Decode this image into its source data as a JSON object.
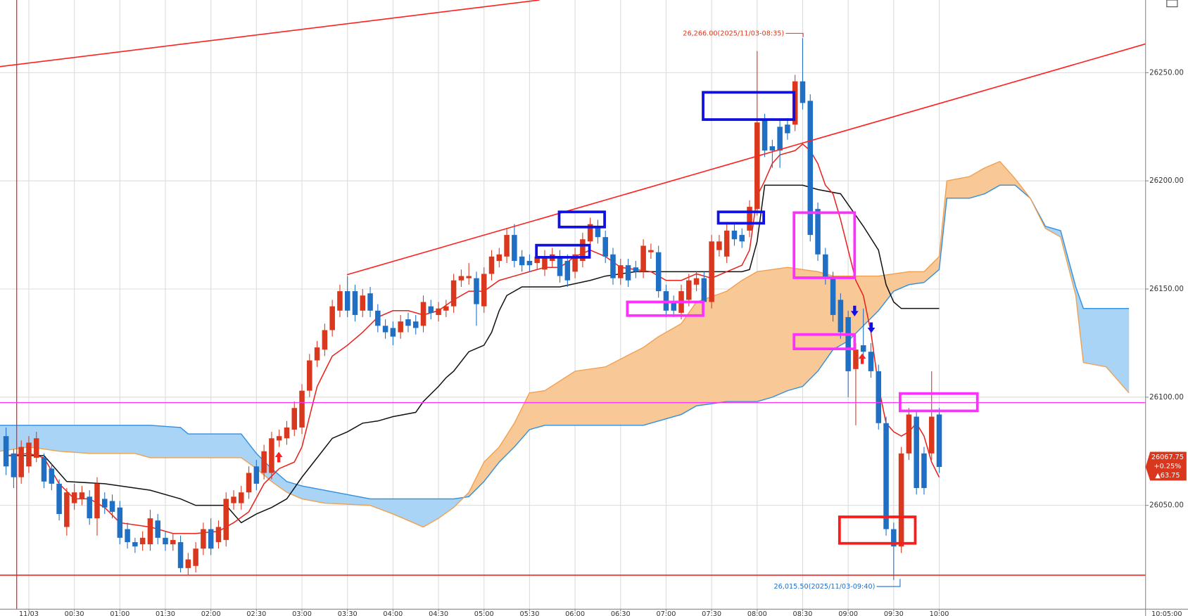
{
  "chart_data": {
    "type": "candlestick",
    "categories": [
      null,
      null,
      null,
      "11/03",
      null,
      null,
      null,
      null,
      null,
      "00:30",
      null,
      null,
      null,
      null,
      null,
      "01:00",
      null,
      null,
      null,
      null,
      null,
      "01:30",
      null,
      null,
      null,
      null,
      null,
      "02:00",
      null,
      null,
      null,
      null,
      null,
      "02:30",
      null,
      null,
      null,
      null,
      null,
      "03:00",
      null,
      null,
      null,
      null,
      null,
      "03:30",
      null,
      null,
      null,
      null,
      null,
      "04:00",
      null,
      null,
      null,
      null,
      null,
      "04:30",
      null,
      null,
      null,
      null,
      null,
      "05:00",
      null,
      null,
      null,
      null,
      null,
      "05:30",
      null,
      null,
      null,
      null,
      null,
      "06:00",
      null,
      null,
      null,
      null,
      null,
      "06:30",
      null,
      null,
      null,
      null,
      null,
      "07:00",
      null,
      null,
      null,
      null,
      null,
      "07:30",
      null,
      null,
      null,
      null,
      null,
      "08:00",
      null,
      null,
      null,
      null,
      null,
      "08:30",
      null,
      null,
      null,
      null,
      null,
      "09:00",
      null,
      null,
      null,
      null,
      null,
      "09:30",
      null,
      null,
      null,
      null,
      null,
      "10:00"
    ],
    "open": [
      26082,
      26074,
      26063,
      26068,
      26072,
      26072,
      26067,
      26060,
      26040,
      26051,
      26053,
      26054,
      26044,
      26053,
      26052,
      26049,
      26039,
      26033,
      26032,
      26032,
      26043,
      26035,
      26032,
      26033,
      26021,
      26022,
      26030,
      26039,
      26033,
      26034,
      26051,
      26051,
      26056,
      26068,
      26065,
      26065,
      26080,
      26081,
      26085,
      26086,
      26103,
      26117,
      26122,
      26131,
      26140,
      26149,
      26149,
      26140,
      26148,
      26140,
      26133,
      26132,
      26130,
      26136,
      26135,
      26133,
      26142,
      26138,
      26140,
      26142,
      26154,
      26155,
      26155,
      26142,
      26157,
      26163,
      26165,
      26175,
      26165,
      26163,
      26162,
      26159,
      26163,
      26165,
      26163,
      26158,
      26163,
      26172,
      26179,
      26174,
      26166,
      26155,
      26161,
      26160,
      26158,
      26167,
      26167,
      26149,
      26144,
      26139,
      26145,
      26152,
      26155,
      26144,
      26168,
      26165,
      26177,
      26175,
      26177,
      26187,
      26228,
      26216,
      26225,
      26226,
      26226,
      26246,
      26237,
      26187,
      26166,
      26155,
      26145,
      26137,
      26113,
      26124,
      26121,
      26112,
      26088,
      26039,
      26031,
      26074,
      26091,
      26074,
      26074,
      26092
    ],
    "high": [
      26086,
      26076,
      26080,
      26082,
      26084,
      26074,
      26069,
      26062,
      26058,
      26060,
      26059,
      26057,
      26063,
      26056,
      26055,
      26052,
      26042,
      26035,
      26038,
      26048,
      26046,
      26038,
      26037,
      26036,
      26028,
      26033,
      26042,
      26044,
      26043,
      26056,
      26057,
      26059,
      26068,
      26071,
      26078,
      26084,
      26085,
      26089,
      26098,
      26106,
      26120,
      26126,
      26134,
      26145,
      26152,
      26156,
      26152,
      26150,
      26151,
      26143,
      26136,
      26135,
      26138,
      26139,
      26138,
      26147,
      26145,
      26144,
      26145,
      26157,
      26159,
      26162,
      26158,
      26160,
      26168,
      26169,
      26178,
      26180,
      26168,
      26166,
      26168,
      26168,
      26169,
      26168,
      26166,
      26169,
      26176,
      26183,
      26182,
      26177,
      26169,
      26164,
      26164,
      26163,
      26173,
      26171,
      26170,
      26152,
      26147,
      26152,
      26157,
      26158,
      26158,
      26175,
      26175,
      26180,
      26180,
      26178,
      26191,
      26260,
      26231,
      26219,
      26228,
      26229,
      26249,
      26266,
      26240,
      26190,
      26169,
      26158,
      26148,
      26140,
      26125,
      26141,
      26125,
      26115,
      26091,
      26042,
      26077,
      26095,
      26094,
      26077,
      26112,
      26095
    ],
    "low": [
      26064,
      26058,
      26060,
      26065,
      26070,
      26058,
      26057,
      26043,
      26036,
      26048,
      26050,
      26041,
      26036,
      26046,
      26044,
      26032,
      26030,
      26028,
      26029,
      26029,
      26032,
      26029,
      26029,
      26019,
      26018,
      26019,
      26027,
      26027,
      26030,
      26031,
      26048,
      26048,
      26053,
      26057,
      26062,
      26062,
      26077,
      26078,
      26082,
      26083,
      26100,
      26114,
      26119,
      26128,
      26137,
      26137,
      26135,
      26137,
      26137,
      26130,
      26127,
      26124,
      26127,
      26130,
      26129,
      26130,
      26136,
      26135,
      26137,
      26139,
      26151,
      26152,
      26133,
      26139,
      26154,
      26160,
      26162,
      26160,
      26158,
      26158,
      26159,
      26156,
      26160,
      26153,
      26151,
      26155,
      26160,
      26169,
      26171,
      26162,
      26152,
      26152,
      26151,
      26155,
      26155,
      26164,
      26146,
      26137,
      26137,
      26136,
      26142,
      26149,
      26141,
      26141,
      26165,
      26162,
      26170,
      26169,
      26174,
      26184,
      26211,
      26206,
      26206,
      26219,
      26223,
      26233,
      26172,
      26163,
      26152,
      26135,
      26127,
      26100,
      26087,
      26118,
      26109,
      26085,
      26036,
      26015.5,
      26028,
      26071,
      26055,
      26055,
      26071,
      26065
    ],
    "close": [
      26068,
      26063,
      26077,
      26079,
      26081,
      26061,
      26060,
      26046,
      26056,
      26056,
      26056,
      26044,
      26060,
      26049,
      26047,
      26035,
      26033,
      26031,
      26035,
      26044,
      26035,
      26032,
      26034,
      26021,
      26025,
      26030,
      26039,
      26030,
      26040,
      26053,
      26054,
      26056,
      26065,
      26060,
      26075,
      26081,
      26082,
      26086,
      26095,
      26103,
      26117,
      26123,
      26131,
      26142,
      26149,
      26140,
      26138,
      26147,
      26140,
      26133,
      26130,
      26128,
      26135,
      26133,
      26132,
      26144,
      26139,
      26141,
      26142,
      26154,
      26156,
      26156,
      26143,
      26157,
      26165,
      26166,
      26175,
      26163,
      26161,
      26161,
      26165,
      26165,
      26166,
      26156,
      26154,
      26166,
      26173,
      26180,
      26174,
      26165,
      26155,
      26161,
      26154,
      26158,
      26170,
      26168,
      26149,
      26140,
      26140,
      26149,
      26154,
      26155,
      26144,
      26172,
      26172,
      26177,
      26173,
      26172,
      26188,
      26227,
      26214,
      26214,
      26214,
      26222,
      26246,
      26236,
      26175,
      26166,
      26155,
      26138,
      26130,
      26112,
      26122,
      26121,
      26112,
      26088,
      26039,
      26031,
      26074,
      26092,
      26058,
      26058,
      26091,
      26067.75
    ],
    "up_color": "#d9381e",
    "down_color": "#1f6fc5",
    "conversion_line": {
      "color": "#e8211a",
      "x": [
        0,
        3,
        5,
        7,
        9,
        11,
        13,
        15,
        19,
        22,
        25,
        28,
        30,
        32,
        34,
        36,
        38,
        39,
        40,
        41,
        42,
        43,
        45,
        47,
        49,
        51,
        53,
        55,
        57,
        59,
        61,
        63,
        65,
        67,
        69,
        71,
        73,
        75,
        77,
        79,
        81,
        83,
        85,
        87,
        89,
        91,
        93,
        95,
        97,
        98,
        99,
        100,
        101,
        102,
        104,
        105,
        106,
        107,
        108,
        109,
        110,
        111,
        112,
        113,
        114,
        115,
        116,
        117,
        118,
        119,
        120,
        121,
        122,
        123
      ],
      "values": [
        26073,
        26074,
        26072,
        26060,
        26053,
        26053,
        26049,
        26042,
        26040,
        26037,
        26037,
        26038,
        26042,
        26047,
        26060,
        26067,
        26070,
        26077,
        26091,
        26105,
        26112,
        26119,
        26124,
        26130,
        26137,
        26140,
        26140,
        26138,
        26140,
        26145,
        26149,
        26149,
        26154,
        26156,
        26158,
        26160,
        26160,
        26165,
        26168,
        26165,
        26160,
        26159,
        26158,
        26154,
        26154,
        26157,
        26155,
        26158,
        26161,
        26168,
        26193,
        26200,
        26208,
        26212,
        26214,
        26217,
        26214,
        26208,
        26198,
        26194,
        26182,
        26168,
        26154,
        26147,
        26130,
        26105,
        26088,
        26084,
        26082,
        26084,
        26088,
        26082,
        26070,
        26063
      ]
    },
    "base_line": {
      "color": "#111111",
      "x": [
        0,
        5,
        8,
        13,
        19,
        23,
        25,
        29,
        31,
        33,
        35,
        37,
        39,
        41,
        43,
        45,
        47,
        49,
        51,
        54,
        55,
        57,
        58,
        59,
        61,
        63,
        64,
        65,
        66,
        68,
        73,
        77,
        79,
        81,
        83,
        97,
        98,
        99,
        100,
        105,
        107,
        110,
        113,
        115,
        116,
        117,
        118,
        123
      ],
      "values": [
        26073,
        26073,
        26061,
        26060,
        26057,
        26053,
        26050,
        26050,
        26042,
        26046,
        26049,
        26053,
        26063,
        26072,
        26081,
        26084,
        26088,
        26089,
        26091,
        26093,
        26098,
        26105,
        26109,
        26112,
        26121,
        26124,
        26130,
        26140,
        26147,
        26151,
        26151,
        26154,
        26156,
        26157,
        26158,
        26158,
        26159,
        26172,
        26198,
        26198,
        26196,
        26194,
        26179,
        26168,
        26152,
        26144,
        26141,
        26141
      ]
    },
    "cloud": {
      "span_a_color": "#2f8fe0",
      "span_b_color": "#f0a050",
      "up_fill": "#a9d4f5",
      "down_fill": "#f8c896",
      "x": [
        -0.8,
        3,
        7,
        11,
        17,
        19,
        23,
        24,
        31,
        33,
        35,
        37,
        39,
        42,
        48,
        51,
        55,
        57,
        59,
        61,
        63,
        65,
        67,
        69,
        71,
        75,
        79,
        84,
        86,
        89,
        91,
        95,
        97,
        99,
        101,
        103,
        105,
        107,
        109,
        111,
        113,
        115,
        117,
        119,
        121,
        123,
        124,
        127,
        129,
        131,
        133,
        135,
        137,
        139,
        141,
        142,
        145,
        148
      ],
      "span_a": [
        26087,
        26087,
        26087,
        26087,
        26087,
        26087,
        26086,
        26083,
        26083,
        26074,
        26067,
        26061,
        26059,
        26057,
        26053,
        26053,
        26053,
        26053,
        26053,
        26054,
        26061,
        26070,
        26077,
        26085,
        26087,
        26087,
        26087,
        26087,
        26089,
        26092,
        26096,
        26098,
        26098,
        26098,
        26100,
        26103,
        26105,
        26112,
        26122,
        26126,
        26133,
        26140,
        26149,
        26152,
        26153,
        26159,
        26192,
        26192,
        26194,
        26198,
        26198,
        26192,
        26179,
        26177,
        26151,
        26141,
        26141,
        26141
      ],
      "span_b": [
        26075,
        26077,
        26075,
        26074,
        26074,
        26072,
        26072,
        26072,
        26072,
        26067,
        26061,
        26056,
        26053,
        26051,
        26050,
        26046,
        26040,
        26044,
        26049,
        26056,
        26070,
        26077,
        26088,
        26102,
        26103,
        26112,
        26114,
        26123,
        26128,
        26134,
        26144,
        26149,
        26154,
        26158,
        26159,
        26160,
        26159,
        26158,
        26156,
        26156,
        26156,
        26156,
        26157,
        26158,
        26158,
        26165,
        26200,
        26202,
        26206,
        26209,
        26201,
        26192,
        26178,
        26174,
        26147,
        26116,
        26114,
        26102
      ]
    },
    "xlim": [
      -0.8,
      150.2
    ],
    "ylim": [
      26002,
      26283.6
    ],
    "yticks": [
      {
        "value": 26050,
        "label": "26050.00"
      },
      {
        "value": 26100,
        "label": "26100.00"
      },
      {
        "value": 26150,
        "label": "26150.00"
      },
      {
        "value": 26200,
        "label": "26200.00"
      },
      {
        "value": 26250,
        "label": "26250.00"
      }
    ],
    "grid": true,
    "high_annotation": "26,266.00(2025/11/03-08:35)",
    "low_annotation": "26,015.50(2025/11/03-09:40)",
    "change_pct": "+0.25%",
    "change_pts": "▲63.75",
    "clock": "10:05:00"
  }
}
